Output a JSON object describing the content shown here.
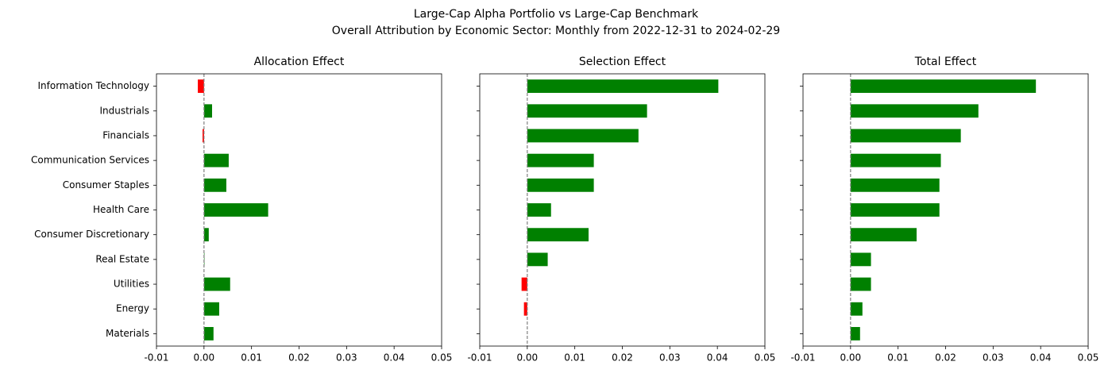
{
  "title": "Large-Cap Alpha Portfolio vs Large-Cap Benchmark",
  "subtitle": "Overall Attribution by Economic Sector: Monthly from 2022-12-31 to 2024-02-29",
  "chart_data": [
    {
      "type": "barh",
      "title": "Allocation Effect",
      "categories": [
        "Information Technology",
        "Industrials",
        "Financials",
        "Communication Services",
        "Consumer Staples",
        "Health Care",
        "Consumer Discretionary",
        "Real Estate",
        "Utilities",
        "Energy",
        "Materials"
      ],
      "values": [
        -0.0013,
        0.0017,
        -0.0003,
        0.0052,
        0.0047,
        0.0135,
        0.001,
        0.0001,
        0.0055,
        0.0032,
        0.002
      ],
      "colors": {
        "positive": "green",
        "negative": "red"
      },
      "xlim": [
        -0.01,
        0.05
      ],
      "xticks": [
        -0.01,
        {
          "value": 0,
          "label": "0.00"
        },
        0.01,
        0.02,
        0.03,
        0.04,
        0.05
      ],
      "zero_line": true
    },
    {
      "type": "barh",
      "title": "Selection Effect",
      "sharey": true,
      "values": [
        0.0402,
        0.0252,
        0.0234,
        0.014,
        0.014,
        0.005,
        0.0129,
        0.0043,
        -0.0012,
        -0.0007,
        0
      ],
      "colors": {
        "positive": "green",
        "negative": "red"
      },
      "xlim": [
        -0.01,
        0.05
      ],
      "xticks": [
        -0.01,
        {
          "value": 0,
          "label": "0.00"
        },
        0.01,
        0.02,
        0.03,
        0.04,
        0.05
      ],
      "zero_line": true
    },
    {
      "type": "barh",
      "title": "Total Effect",
      "sharey": true,
      "values": [
        0.039,
        0.0269,
        0.0232,
        0.019,
        0.0187,
        0.0187,
        0.0139,
        0.0043,
        0.0043,
        0.0025,
        0.002
      ],
      "colors": {
        "positive": "green",
        "negative": "red"
      },
      "xlim": [
        -0.01,
        0.05
      ],
      "xticks": [
        -0.01,
        {
          "value": 0,
          "label": "0.00"
        },
        0.01,
        0.02,
        0.03,
        0.04,
        0.05
      ],
      "zero_line": true
    }
  ]
}
